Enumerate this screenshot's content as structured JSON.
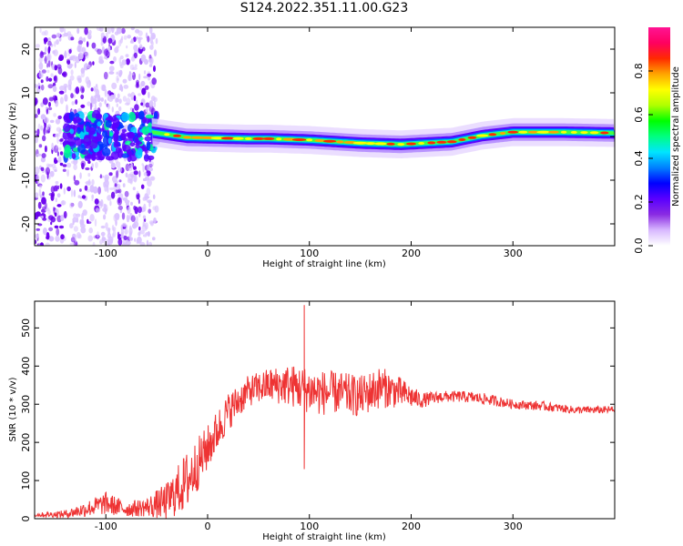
{
  "title": "S124.2022.351.11.00.G23",
  "chart_data": [
    {
      "type": "heatmap",
      "xlabel": "Height of straight line (km)",
      "ylabel": "Frequency (Hz)",
      "xlim": [
        -170,
        400
      ],
      "ylim": [
        -25,
        25
      ],
      "xticks": [
        -100,
        0,
        100,
        200,
        300
      ],
      "yticks": [
        -20,
        -10,
        0,
        10,
        20
      ],
      "colorbar": {
        "label": "Normalized spectral amplitude",
        "ticks": [
          0.0,
          0.2,
          0.4,
          0.6,
          0.8
        ],
        "range": [
          0,
          1
        ],
        "colors": [
          "#ffffff",
          "#d8b8ff",
          "#8a2be2",
          "#5a00ff",
          "#0000ff",
          "#0080ff",
          "#00e5ff",
          "#00ff80",
          "#00ff00",
          "#b0ff00",
          "#ffff00",
          "#ffa500",
          "#ff2a00",
          "#ff0060",
          "#ff1493"
        ]
      },
      "ridge": [
        {
          "x": -55,
          "y": 1.0
        },
        {
          "x": -20,
          "y": -0.2
        },
        {
          "x": 0,
          "y": -0.3
        },
        {
          "x": 40,
          "y": -0.5
        },
        {
          "x": 60,
          "y": -0.5
        },
        {
          "x": 100,
          "y": -0.8
        },
        {
          "x": 150,
          "y": -1.5
        },
        {
          "x": 190,
          "y": -1.8
        },
        {
          "x": 240,
          "y": -1.2
        },
        {
          "x": 270,
          "y": 0.2
        },
        {
          "x": 300,
          "y": 1.0
        },
        {
          "x": 350,
          "y": 1.0
        },
        {
          "x": 400,
          "y": 0.8
        }
      ]
    },
    {
      "type": "line",
      "xlabel": "Height of straight line (km)",
      "ylabel": "SNR (10 * v/v)",
      "xlim": [
        -170,
        400
      ],
      "ylim": [
        0,
        570
      ],
      "xticks": [
        -100,
        0,
        100,
        200,
        300
      ],
      "yticks": [
        0,
        100,
        200,
        300,
        400,
        500
      ],
      "color": "#ee3333",
      "series": [
        {
          "x": [
            -170,
            -140,
            -120,
            -100,
            -80,
            -60,
            -40,
            -20,
            0,
            20,
            40,
            60,
            80,
            95,
            110,
            130,
            150,
            170,
            190,
            210,
            230,
            250,
            270,
            300,
            330,
            360,
            400
          ],
          "y": [
            10,
            12,
            25,
            40,
            25,
            30,
            45,
            100,
            185,
            280,
            335,
            350,
            350,
            340,
            330,
            330,
            320,
            345,
            330,
            310,
            320,
            320,
            315,
            300,
            295,
            285,
            285
          ],
          "spread": [
            5,
            10,
            20,
            30,
            20,
            25,
            50,
            80,
            60,
            50,
            40,
            45,
            55,
            60,
            60,
            55,
            55,
            55,
            40,
            20,
            15,
            15,
            15,
            12,
            12,
            10,
            10
          ]
        }
      ],
      "peaks": [
        {
          "x": 95,
          "y": 560
        },
        {
          "x": 95,
          "y": 130
        }
      ]
    }
  ]
}
